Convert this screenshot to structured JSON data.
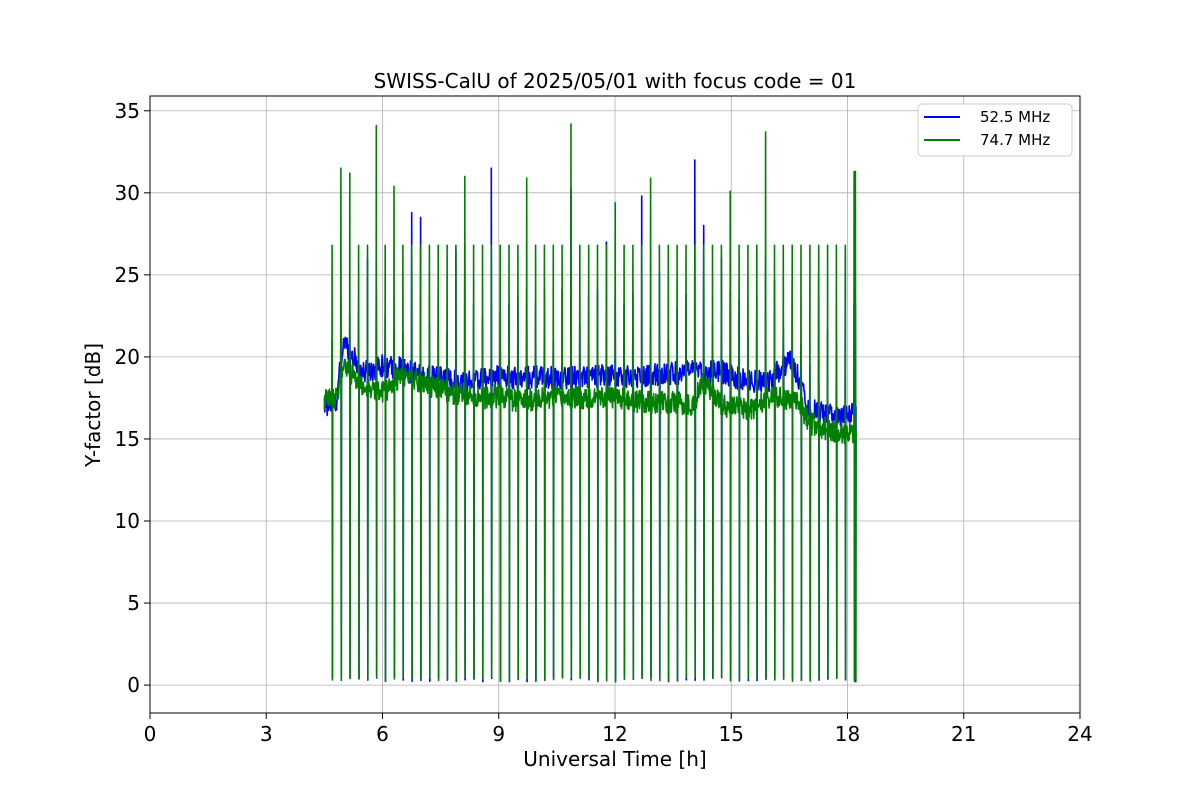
{
  "chart_data": {
    "type": "line",
    "title": "SWISS-CalU of 2025/05/01 with focus code = 01",
    "xlabel": "Universal Time [h]",
    "ylabel": "Y-factor [dB]",
    "xlim": [
      0,
      24
    ],
    "ylim": [
      -1.7,
      35.9
    ],
    "xticks": [
      0,
      3,
      6,
      9,
      12,
      15,
      18,
      21,
      24
    ],
    "yticks": [
      0,
      5,
      10,
      15,
      20,
      25,
      30,
      35
    ],
    "xtick_labels": [
      "0",
      "3",
      "6",
      "9",
      "12",
      "15",
      "18",
      "21",
      "24"
    ],
    "ytick_labels": [
      "0",
      "5",
      "10",
      "15",
      "20",
      "25",
      "30",
      "35"
    ],
    "grid": true,
    "legend_position": "top-right",
    "calibration_start_h": 4.5,
    "calibration_end_h": 18.2,
    "series": [
      {
        "name": "52.5 MHz",
        "color": "#0000ff",
        "baseline_points": [
          [
            4.5,
            17.0
          ],
          [
            4.8,
            17.2
          ],
          [
            5.0,
            21.0
          ],
          [
            5.5,
            19.0
          ],
          [
            6.0,
            19.5
          ],
          [
            6.5,
            19.3
          ],
          [
            7.0,
            18.8
          ],
          [
            7.5,
            18.7
          ],
          [
            8.0,
            18.5
          ],
          [
            8.5,
            18.6
          ],
          [
            9.0,
            18.8
          ],
          [
            9.5,
            18.7
          ],
          [
            10.0,
            18.8
          ],
          [
            10.5,
            18.7
          ],
          [
            11.0,
            18.8
          ],
          [
            11.5,
            18.8
          ],
          [
            12.0,
            18.9
          ],
          [
            12.5,
            18.8
          ],
          [
            13.0,
            18.9
          ],
          [
            13.5,
            19.0
          ],
          [
            14.0,
            19.1
          ],
          [
            14.3,
            19.0
          ],
          [
            14.7,
            19.2
          ],
          [
            15.0,
            18.8
          ],
          [
            15.5,
            18.5
          ],
          [
            16.0,
            18.6
          ],
          [
            16.5,
            19.8
          ],
          [
            16.8,
            18.5
          ],
          [
            17.0,
            16.8
          ],
          [
            17.5,
            16.5
          ],
          [
            18.0,
            16.3
          ],
          [
            18.2,
            17.0
          ]
        ],
        "peak_points": [
          [
            4.5,
            1.4
          ],
          [
            4.78,
            21.0
          ],
          [
            5.05,
            22.5
          ],
          [
            5.5,
            26.0
          ],
          [
            5.85,
            24.0
          ],
          [
            6.5,
            21.5
          ],
          [
            6.8,
            28.8
          ],
          [
            7.05,
            28.5
          ],
          [
            7.85,
            26.5
          ],
          [
            8.1,
            26.8
          ],
          [
            8.75,
            31.5
          ],
          [
            9.35,
            23.2
          ],
          [
            10.2,
            24.2
          ],
          [
            10.8,
            30.3
          ],
          [
            11.0,
            22.0
          ],
          [
            11.8,
            27.0
          ],
          [
            12.3,
            23.2
          ],
          [
            12.75,
            29.8
          ],
          [
            13.2,
            25.2
          ],
          [
            13.6,
            23.0
          ],
          [
            14.15,
            32.0
          ],
          [
            14.35,
            28.0
          ],
          [
            14.8,
            26.0
          ],
          [
            15.2,
            23.5
          ],
          [
            15.85,
            26.0
          ],
          [
            16.6,
            24.7
          ],
          [
            17.25,
            25.0
          ],
          [
            17.85,
            26.6
          ],
          [
            18.2,
            23.2
          ]
        ]
      },
      {
        "name": "74.7 MHz",
        "color": "#008000",
        "baseline_points": [
          [
            4.5,
            17.3
          ],
          [
            4.8,
            17.5
          ],
          [
            5.0,
            19.5
          ],
          [
            5.5,
            18.2
          ],
          [
            6.0,
            17.8
          ],
          [
            6.5,
            18.9
          ],
          [
            7.0,
            18.5
          ],
          [
            7.5,
            18.0
          ],
          [
            8.0,
            17.7
          ],
          [
            8.5,
            17.5
          ],
          [
            9.0,
            17.6
          ],
          [
            9.5,
            17.3
          ],
          [
            10.0,
            17.4
          ],
          [
            10.5,
            17.5
          ],
          [
            11.0,
            17.5
          ],
          [
            11.5,
            17.6
          ],
          [
            12.0,
            17.5
          ],
          [
            12.5,
            17.3
          ],
          [
            13.0,
            17.2
          ],
          [
            13.5,
            17.2
          ],
          [
            14.0,
            17.1
          ],
          [
            14.3,
            18.5
          ],
          [
            14.7,
            17.2
          ],
          [
            15.0,
            16.9
          ],
          [
            15.5,
            16.8
          ],
          [
            16.0,
            17.5
          ],
          [
            16.5,
            17.4
          ],
          [
            16.8,
            17.0
          ],
          [
            17.0,
            16.0
          ],
          [
            17.5,
            15.6
          ],
          [
            18.0,
            15.3
          ],
          [
            18.2,
            15.5
          ]
        ],
        "peak_points": [
          [
            4.5,
            26.7
          ],
          [
            4.85,
            31.5
          ],
          [
            5.05,
            31.2
          ],
          [
            5.85,
            34.1
          ],
          [
            6.25,
            30.4
          ],
          [
            8.05,
            31.0
          ],
          [
            9.8,
            30.9
          ],
          [
            10.9,
            34.2
          ],
          [
            12.1,
            29.4
          ],
          [
            12.95,
            30.9
          ],
          [
            15.0,
            30.1
          ],
          [
            15.85,
            33.7
          ],
          [
            18.1,
            31.3
          ]
        ],
        "repeated_cal_peak": 26.8,
        "repeated_cal_low": 0.2
      }
    ]
  }
}
